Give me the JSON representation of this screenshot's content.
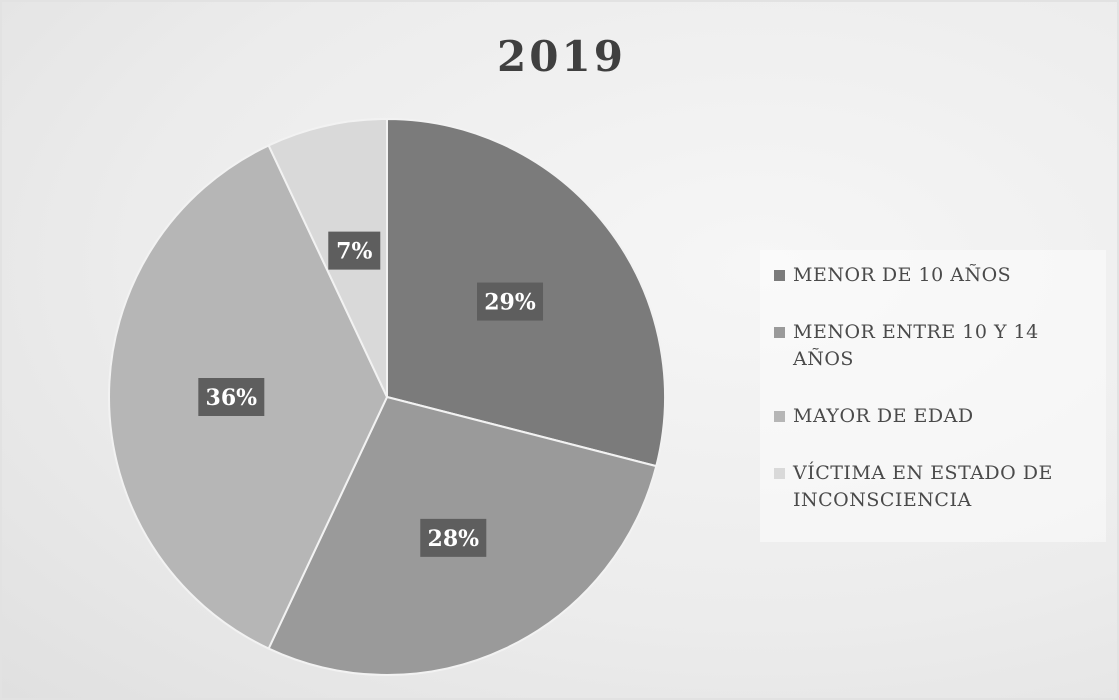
{
  "chart_data": {
    "type": "pie",
    "title": "2019",
    "slices": [
      {
        "label": "MENOR DE 10 AÑOS",
        "value": 29,
        "display": "29%",
        "color": "#7b7b7b"
      },
      {
        "label": "MENOR ENTRE 10 Y 14 AÑOS",
        "value": 28,
        "display": "28%",
        "color": "#9a9a9a"
      },
      {
        "label": "MAYOR DE EDAD",
        "value": 36,
        "display": "36%",
        "color": "#b6b6b6"
      },
      {
        "label": "VÍCTIMA EN ESTADO DE INCONSCIENCIA",
        "value": 7,
        "display": "7%",
        "color": "#d9d9d9"
      }
    ],
    "legend_position": "right",
    "data_label_color": "#5e5e5e"
  }
}
